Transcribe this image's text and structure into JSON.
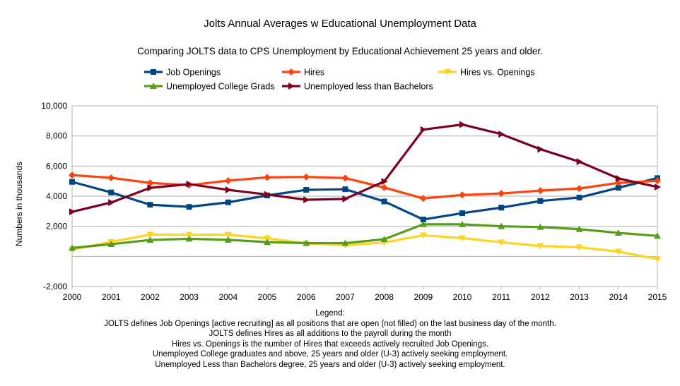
{
  "chart_data": {
    "type": "line",
    "title": "Jolts Annual Averages w Educational Unemployment Data",
    "subtitle": "Comparing JOLTS data to CPS Unemployment by Educational Achievement 25 years and older.",
    "xlabel": "",
    "ylabel": "Numbers in thousands",
    "ylim": [
      -2000,
      10000
    ],
    "yticks": [
      -2000,
      2000,
      4000,
      6000,
      8000,
      10000
    ],
    "ytick_labels": [
      "-2,000",
      "2,000",
      "4,000",
      "6,000",
      "8,000",
      "10,000"
    ],
    "categories": [
      "2000",
      "2001",
      "2002",
      "2003",
      "2004",
      "2005",
      "2006",
      "2007",
      "2008",
      "2009",
      "2010",
      "2011",
      "2012",
      "2013",
      "2014",
      "2015"
    ],
    "grid": "horizontal",
    "legend_position": "top",
    "series": [
      {
        "name": "Job Openings",
        "color": "#004586",
        "marker": "square",
        "values": [
          4950,
          4250,
          3430,
          3290,
          3590,
          4050,
          4420,
          4460,
          3650,
          2450,
          2870,
          3240,
          3680,
          3910,
          4560,
          5200
        ]
      },
      {
        "name": "Hires",
        "color": "#ff420e",
        "marker": "diamond",
        "values": [
          5400,
          5220,
          4880,
          4730,
          5030,
          5250,
          5280,
          5200,
          4570,
          3850,
          4080,
          4180,
          4370,
          4510,
          4880,
          5020
        ]
      },
      {
        "name": "Hires vs. Openings",
        "color": "#ffd320",
        "marker": "triangle-down",
        "values": [
          450,
          970,
          1450,
          1440,
          1440,
          1200,
          860,
          740,
          920,
          1400,
          1210,
          940,
          690,
          600,
          320,
          -180
        ]
      },
      {
        "name": "Unemployed College Grads",
        "color": "#579d1c",
        "marker": "triangle-up",
        "values": [
          560,
          810,
          1090,
          1170,
          1100,
          950,
          880,
          880,
          1140,
          2130,
          2130,
          2000,
          1950,
          1810,
          1560,
          1360
        ]
      },
      {
        "name": "Unemployed less than Bachelors",
        "color": "#7e0021",
        "marker": "triangle-right",
        "values": [
          2960,
          3580,
          4550,
          4800,
          4420,
          4110,
          3760,
          3820,
          4980,
          8420,
          8760,
          8120,
          7120,
          6290,
          5180,
          4610
        ]
      }
    ]
  },
  "notes": {
    "heading": "Legend:",
    "lines": [
      "JOLTS defines Job Openings [active recruiting] as all positions that are open (not filled) on the last business day of the month.",
      "JOLTS defines Hires as all additions to the payroll during the month",
      "Hires vs. Openings is the number of Hires that exceeds actively recruited Job Openings.",
      "Unemployed College graduates and above, 25 years and older (U-3) actively seeking employment.",
      "Unemployed Less than Bachelors degree, 25 years and older (U-3) actively seeking employment."
    ]
  }
}
